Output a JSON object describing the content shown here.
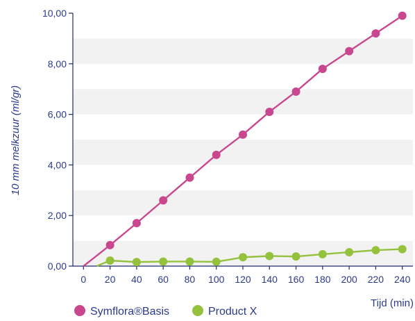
{
  "chart_data": {
    "type": "line",
    "title": "",
    "xlabel": "Tijd (min)",
    "ylabel": "10 mm melkzuur (ml/gr)",
    "xlim": [
      -8,
      248
    ],
    "ylim": [
      0,
      10
    ],
    "x_ticks": [
      "0",
      "20",
      "40",
      "60",
      "80",
      "100",
      "120",
      "140",
      "160",
      "180",
      "200",
      "220",
      "240"
    ],
    "y_ticks": [
      "0,00",
      "2,00",
      "4,00",
      "6,00",
      "8,00",
      "10,00"
    ],
    "grid": "horizontal alternating bands",
    "legend_position": "bottom-left",
    "series": [
      {
        "name": "Symflora®Basis",
        "color": "#c8478f",
        "x": [
          0,
          20,
          40,
          60,
          80,
          100,
          120,
          140,
          160,
          180,
          200,
          220,
          240
        ],
        "y": [
          0,
          0.83,
          1.7,
          2.6,
          3.5,
          4.4,
          5.2,
          6.1,
          6.9,
          7.8,
          8.5,
          9.2,
          9.9
        ],
        "markers_from_index": 1
      },
      {
        "name": "Product X",
        "color": "#94c23d",
        "x": [
          10,
          20,
          40,
          60,
          80,
          100,
          120,
          140,
          160,
          180,
          200,
          220,
          240
        ],
        "y": [
          0,
          0.22,
          0.16,
          0.18,
          0.18,
          0.17,
          0.35,
          0.4,
          0.38,
          0.47,
          0.55,
          0.63,
          0.67
        ],
        "markers_from_index": 1
      }
    ]
  }
}
